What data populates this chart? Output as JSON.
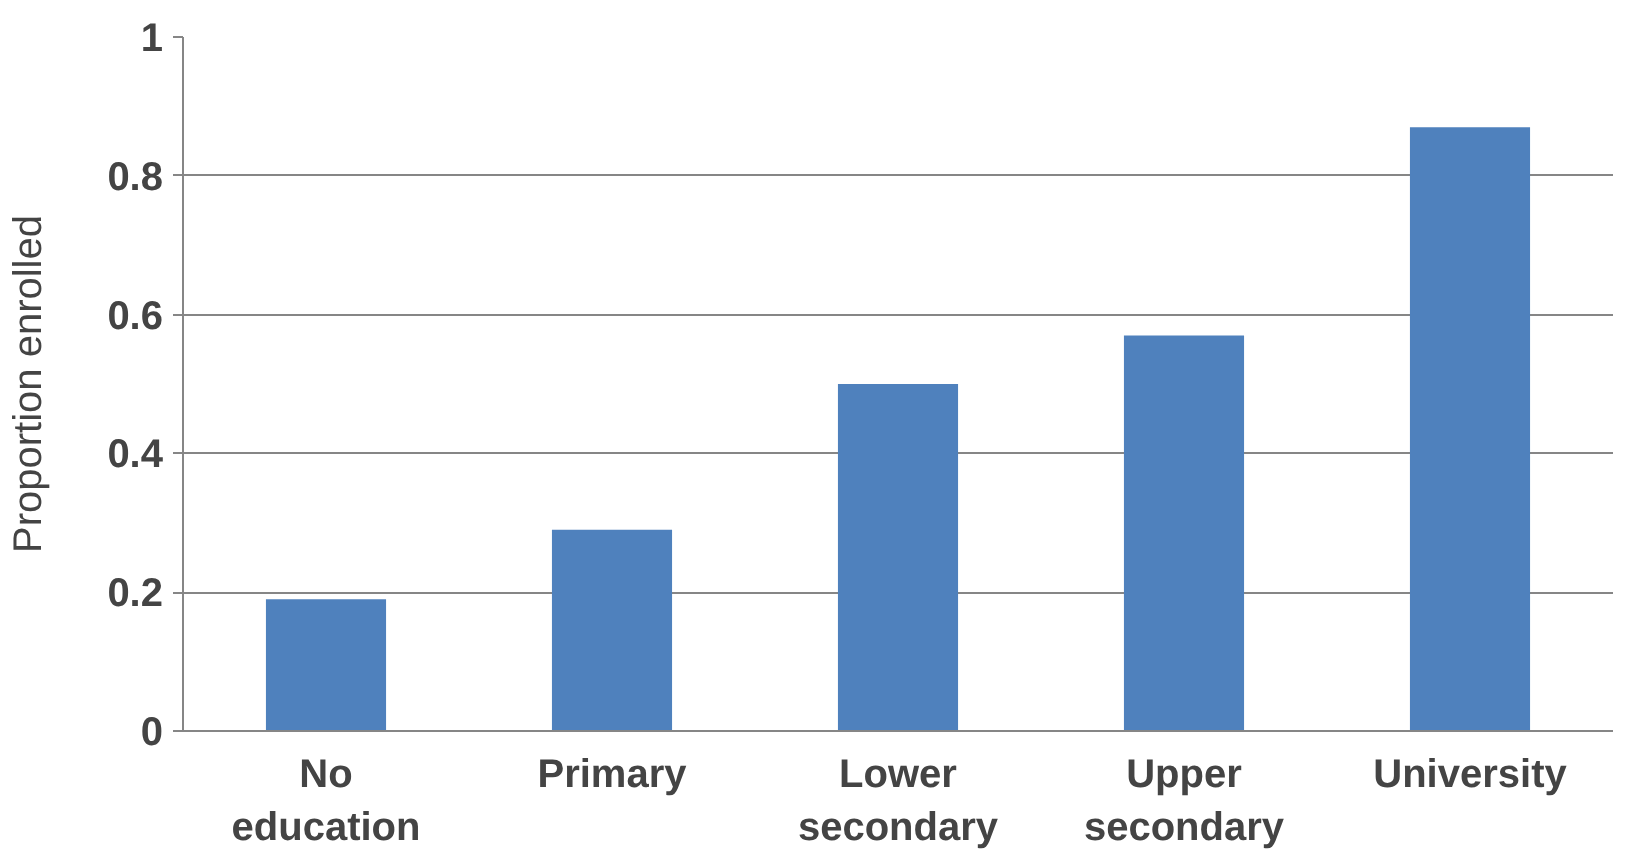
{
  "chart_data": {
    "type": "bar",
    "ylabel": "Proportion enrolled",
    "categories": [
      "No\neducation",
      "Primary",
      "Lower\nsecondary",
      "Upper\nsecondary",
      "University"
    ],
    "values": [
      0.19,
      0.29,
      0.5,
      0.57,
      0.87
    ],
    "color": "#4f81bd",
    "ylim": [
      0,
      1
    ],
    "yticks": [
      0,
      0.2,
      0.4,
      0.6,
      0.8,
      1
    ],
    "grid": "y"
  }
}
